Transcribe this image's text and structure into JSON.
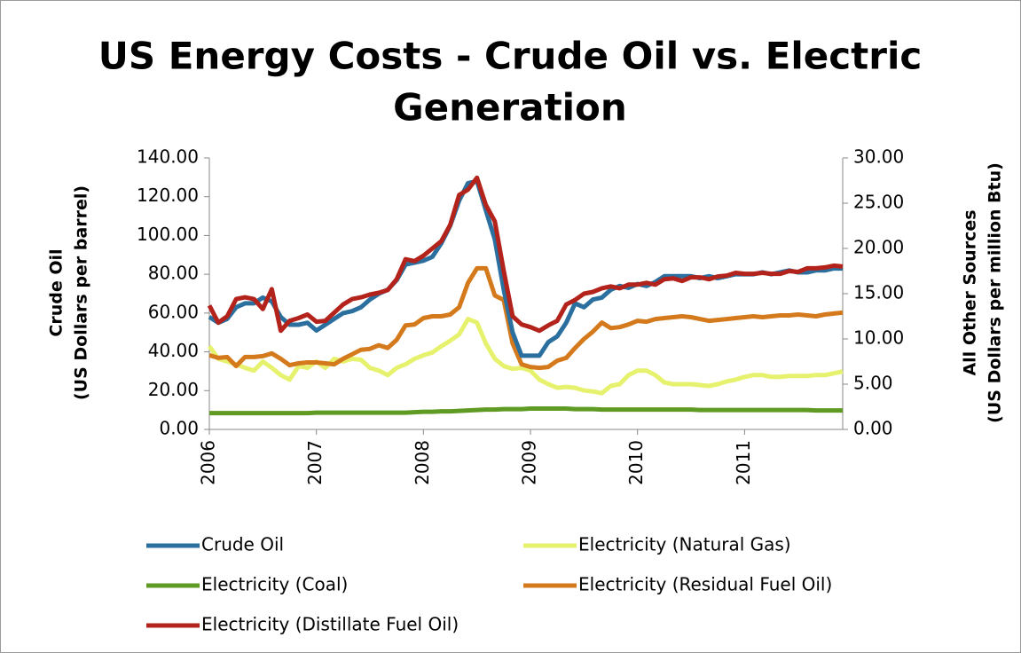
{
  "chart_data": {
    "type": "line",
    "title": [
      "US Energy Costs - Crude Oil vs. Electric",
      "Generation"
    ],
    "y_label": [
      "Crude Oil",
      "(US Dollars per barrel)"
    ],
    "y2_label": [
      "All Other Sources",
      "(US Dollars per million Btu)"
    ],
    "categories": [
      "2006",
      null,
      null,
      null,
      null,
      null,
      null,
      null,
      null,
      null,
      null,
      null,
      "2007",
      null,
      null,
      null,
      null,
      null,
      null,
      null,
      null,
      null,
      null,
      null,
      "2008",
      null,
      null,
      null,
      null,
      null,
      null,
      null,
      null,
      null,
      null,
      null,
      "2009",
      null,
      null,
      null,
      null,
      null,
      null,
      null,
      null,
      null,
      null,
      null,
      "2010",
      null,
      null,
      null,
      null,
      null,
      null,
      null,
      null,
      null,
      null,
      null,
      "2011",
      null,
      null,
      null,
      null,
      null,
      null,
      null,
      null,
      null,
      null,
      null
    ],
    "ylim": [
      0,
      140
    ],
    "yticks": [
      {
        "value": 0,
        "label": "0.00"
      },
      {
        "value": 20,
        "label": "20.00"
      },
      {
        "value": 40,
        "label": "40.00"
      },
      {
        "value": 60,
        "label": "60.00"
      },
      {
        "value": 80,
        "label": "80.00"
      },
      {
        "value": 100,
        "label": "100.00"
      },
      {
        "value": 120,
        "label": "120.00"
      },
      {
        "value": 140,
        "label": "140.00"
      }
    ],
    "y2lim": [
      0,
      30
    ],
    "y2ticks": [
      {
        "value": 0,
        "label": "0.00"
      },
      {
        "value": 5,
        "label": "5.00"
      },
      {
        "value": 10,
        "label": "10.00"
      },
      {
        "value": 15,
        "label": "15.00"
      },
      {
        "value": 20,
        "label": "20.00"
      },
      {
        "value": 25,
        "label": "25.00"
      },
      {
        "value": 30,
        "label": "30.00"
      }
    ],
    "legend": "bottom",
    "series": [
      {
        "name": "Crude Oil",
        "color": "#2a6f9e",
        "values": [
          58,
          55,
          57,
          63,
          65,
          65,
          68,
          66,
          58,
          54,
          54,
          55,
          51,
          54,
          57,
          60,
          61,
          63,
          67,
          70,
          72,
          77,
          85,
          86,
          87,
          89,
          96,
          105,
          118,
          127,
          128,
          113,
          98,
          72,
          50,
          38,
          38,
          38,
          45,
          48,
          55,
          65,
          63,
          67,
          68,
          72,
          74,
          73,
          75,
          74,
          76,
          79,
          79,
          79,
          79,
          78,
          79,
          78,
          79,
          80,
          80,
          80,
          81,
          80,
          81,
          82,
          81,
          81,
          82,
          82,
          83,
          83
        ]
      },
      {
        "name": "Electricity (Natural Gas)",
        "color": "#e6f26e",
        "axis": "y2",
        "values": [
          9.2,
          7.8,
          7.5,
          7.2,
          6.8,
          6.5,
          7.5,
          6.8,
          6.0,
          5.5,
          7.0,
          6.8,
          7.5,
          6.8,
          7.8,
          7.5,
          7.8,
          7.7,
          6.8,
          6.5,
          6.0,
          6.8,
          7.2,
          7.8,
          8.2,
          8.5,
          9.2,
          9.8,
          10.5,
          12.2,
          11.8,
          9.5,
          7.8,
          7.0,
          6.7,
          6.8,
          6.5,
          5.5,
          5.0,
          4.6,
          4.7,
          4.6,
          4.3,
          4.2,
          4.0,
          4.8,
          5.0,
          6.0,
          6.5,
          6.5,
          6.0,
          5.2,
          5.0,
          5.0,
          5.0,
          4.9,
          4.8,
          5.0,
          5.3,
          5.5,
          5.8,
          6.0,
          6.0,
          5.8,
          5.8,
          5.9,
          5.9,
          5.9,
          6.0,
          6.0,
          6.2,
          6.4
        ]
      },
      {
        "name": "Electricity (Coal)",
        "color": "#5f9a22",
        "axis": "y2",
        "values": [
          1.8,
          1.8,
          1.8,
          1.8,
          1.8,
          1.8,
          1.8,
          1.8,
          1.8,
          1.8,
          1.8,
          1.8,
          1.85,
          1.85,
          1.85,
          1.85,
          1.85,
          1.85,
          1.85,
          1.85,
          1.85,
          1.85,
          1.85,
          1.9,
          1.95,
          1.95,
          2.0,
          2.0,
          2.05,
          2.1,
          2.15,
          2.2,
          2.2,
          2.25,
          2.25,
          2.25,
          2.3,
          2.3,
          2.3,
          2.3,
          2.3,
          2.25,
          2.25,
          2.25,
          2.2,
          2.2,
          2.2,
          2.2,
          2.2,
          2.2,
          2.2,
          2.2,
          2.2,
          2.2,
          2.2,
          2.15,
          2.15,
          2.15,
          2.15,
          2.15,
          2.15,
          2.15,
          2.15,
          2.15,
          2.15,
          2.15,
          2.15,
          2.15,
          2.1,
          2.1,
          2.1,
          2.1
        ]
      },
      {
        "name": "Electricity (Residual Fuel Oil)",
        "color": "#d47a1c",
        "axis": "y2",
        "values": [
          8.2,
          7.9,
          8.0,
          7.0,
          8.0,
          8.0,
          8.1,
          8.4,
          7.8,
          7.1,
          7.3,
          7.4,
          7.4,
          7.3,
          7.2,
          7.8,
          8.3,
          8.8,
          8.9,
          9.3,
          9.0,
          9.9,
          11.5,
          11.6,
          12.3,
          12.5,
          12.5,
          12.7,
          13.5,
          16.2,
          17.8,
          17.8,
          14.8,
          14.3,
          9.5,
          7.2,
          6.9,
          6.8,
          6.9,
          7.6,
          7.9,
          9.0,
          10.0,
          10.8,
          11.8,
          11.2,
          11.3,
          11.6,
          12.0,
          11.9,
          12.2,
          12.3,
          12.4,
          12.5,
          12.4,
          12.2,
          12.0,
          12.1,
          12.2,
          12.3,
          12.4,
          12.5,
          12.4,
          12.5,
          12.6,
          12.6,
          12.7,
          12.6,
          12.5,
          12.7,
          12.8,
          12.9
        ]
      },
      {
        "name": "Electricity (Distillate Fuel Oil)",
        "color": "#b3231b",
        "axis": "y2",
        "values": [
          13.7,
          11.8,
          12.5,
          14.4,
          14.6,
          14.4,
          13.3,
          15.5,
          10.9,
          12.0,
          12.3,
          12.7,
          11.9,
          12.0,
          12.9,
          13.8,
          14.4,
          14.6,
          14.9,
          15.1,
          15.4,
          16.6,
          18.8,
          18.6,
          19.2,
          20.0,
          20.8,
          22.6,
          25.9,
          26.5,
          27.8,
          24.8,
          23.0,
          17.5,
          12.5,
          11.6,
          11.3,
          10.9,
          11.5,
          12.0,
          13.8,
          14.3,
          15.0,
          15.2,
          15.6,
          15.8,
          15.6,
          16.0,
          16.0,
          16.2,
          16.0,
          16.6,
          16.7,
          16.4,
          16.8,
          16.8,
          16.6,
          16.9,
          17.0,
          17.3,
          17.2,
          17.2,
          17.3,
          17.2,
          17.2,
          17.5,
          17.4,
          17.8,
          17.8,
          17.9,
          18.1,
          18.0
        ]
      }
    ]
  }
}
